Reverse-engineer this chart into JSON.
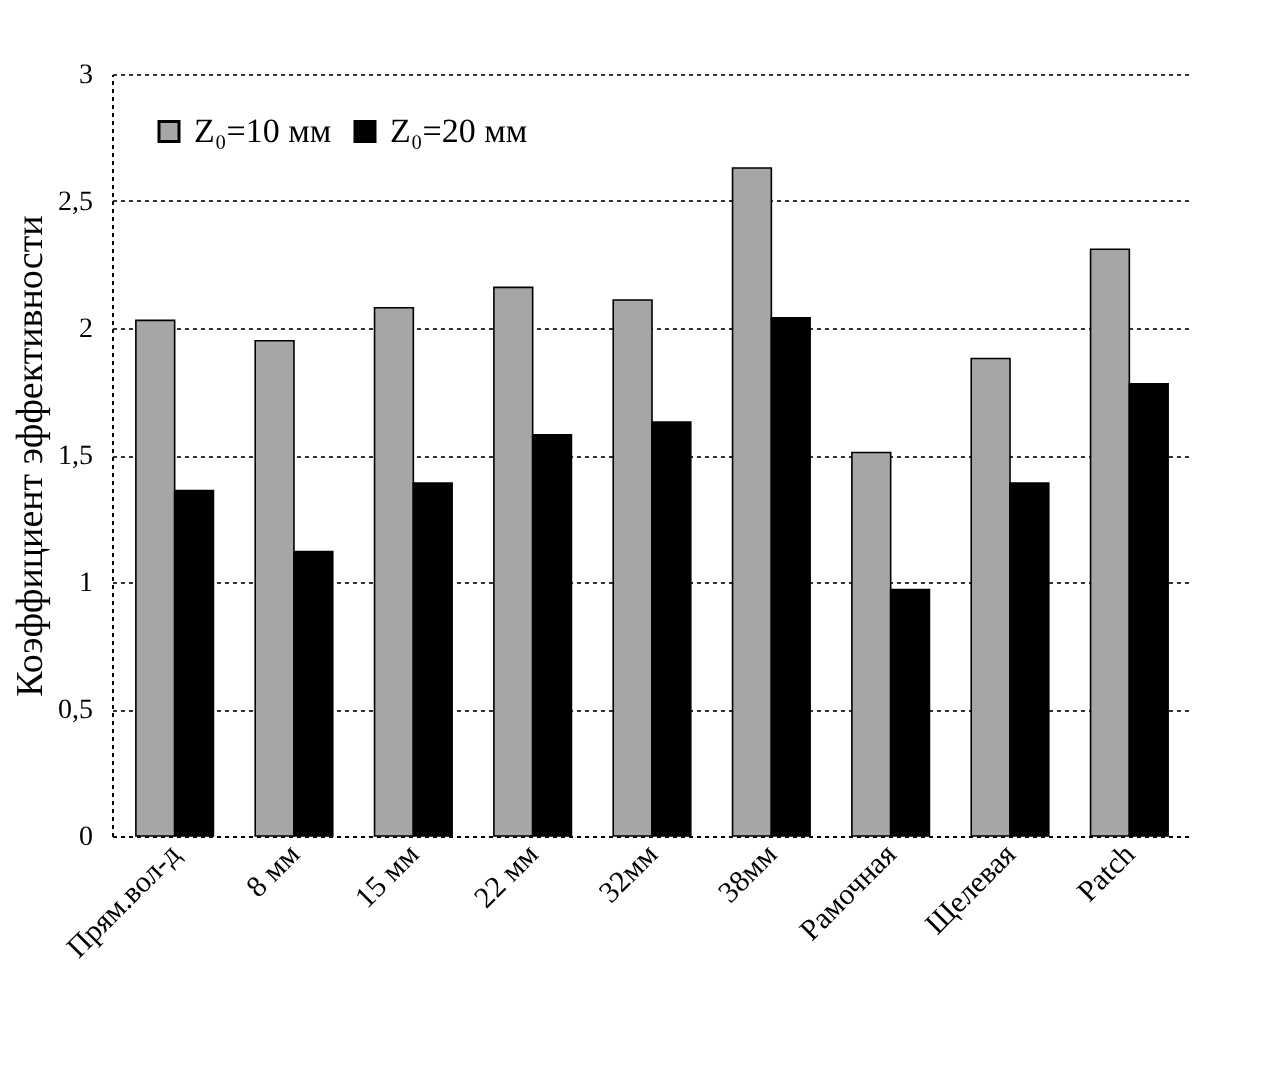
{
  "chart_data": {
    "type": "bar",
    "ylabel": "Коэффициент эффективности",
    "categories": [
      "Прям.вол-д",
      "8 мм",
      "15 мм",
      "22 мм",
      "32мм",
      "38мм",
      "Рамочная",
      "Щелевая",
      "Patch"
    ],
    "series": [
      {
        "name": "Z₀=10 мм",
        "color": "#a6a6a6",
        "values": [
          2.03,
          1.95,
          2.08,
          2.16,
          2.11,
          2.63,
          1.51,
          1.88,
          2.31
        ]
      },
      {
        "name": "Z₀=20 мм",
        "color": "#000000",
        "values": [
          1.36,
          1.12,
          1.39,
          1.58,
          1.63,
          2.04,
          0.97,
          1.39,
          1.78
        ]
      }
    ],
    "ylim": [
      0,
      3
    ],
    "yticks": [
      0,
      {
        "value": 0.5,
        "label": "0,5"
      },
      1,
      {
        "value": 1.5,
        "label": "1,5"
      },
      2,
      {
        "value": 2.5,
        "label": "2,5"
      },
      3
    ],
    "grid": "y",
    "legend": "top left"
  }
}
